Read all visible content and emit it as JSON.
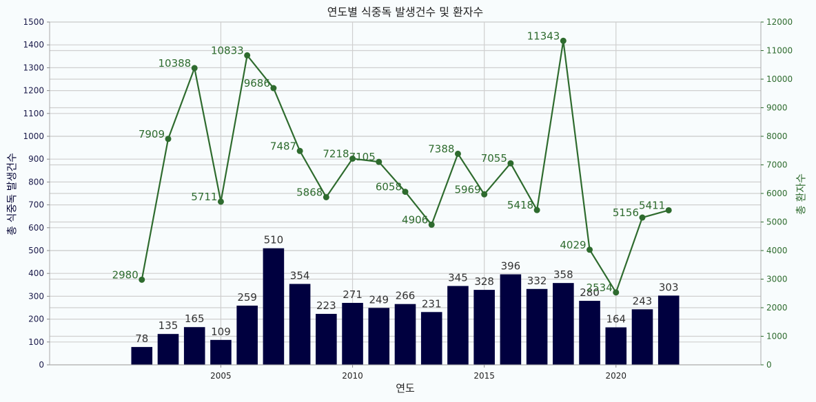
{
  "chart_data": {
    "type": "bar",
    "title": "연도별 식중독 발생건수 및 환자수",
    "xlabel": "연도",
    "ylabel": "총 식중독 발생건수",
    "y2label": "총 환자수",
    "x": [
      2002,
      2003,
      2004,
      2005,
      2006,
      2007,
      2008,
      2009,
      2010,
      2011,
      2012,
      2013,
      2014,
      2015,
      2016,
      2017,
      2018,
      2019,
      2020,
      2021,
      2022
    ],
    "x_ticks": [
      2005,
      2010,
      2015,
      2020
    ],
    "ylim": [
      0,
      1500
    ],
    "y_ticks": [
      0,
      100,
      200,
      300,
      400,
      500,
      600,
      700,
      800,
      900,
      1000,
      1100,
      1200,
      1300,
      1400,
      1500
    ],
    "y2lim": [
      0,
      12000
    ],
    "y2_ticks": [
      0,
      1000,
      2000,
      3000,
      4000,
      5000,
      6000,
      7000,
      8000,
      9000,
      10000,
      11000,
      12000
    ],
    "grid": true,
    "series": [
      {
        "type": "bar",
        "axis": "left",
        "color": "#00003f",
        "values": [
          78,
          135,
          165,
          109,
          259,
          510,
          354,
          223,
          271,
          249,
          266,
          231,
          345,
          328,
          396,
          332,
          358,
          280,
          164,
          243,
          303
        ]
      },
      {
        "type": "line",
        "axis": "right",
        "color": "#2e6b2e",
        "values": [
          2980,
          7909,
          10388,
          5711,
          10833,
          9686,
          7487,
          5868,
          7218,
          7105,
          6058,
          4906,
          7388,
          5969,
          7055,
          5418,
          11343,
          4029,
          2534,
          5156,
          5411
        ]
      }
    ]
  }
}
